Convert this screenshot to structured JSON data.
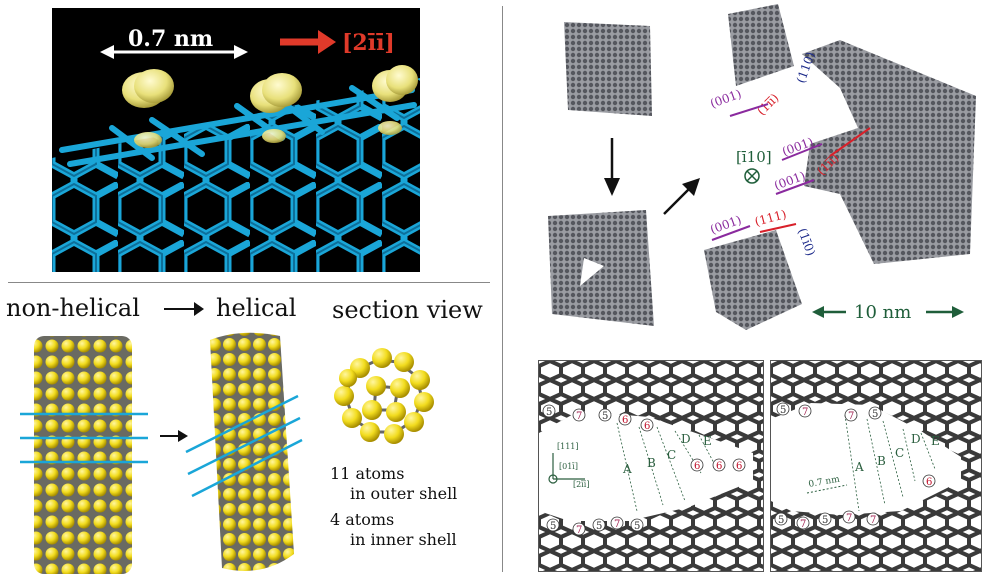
{
  "panel_a": {
    "distance_label": "0.7 nm",
    "direction_label": "[2īī]",
    "colors": {
      "lattice": "#1aa6d8",
      "orbital": "#e8e07a",
      "arrow": "#e03a2a",
      "background": "#000000"
    }
  },
  "panel_b": {
    "non_helical_label": "non-helical",
    "helical_label": "helical",
    "section_label": "section view",
    "outer_atoms": "11 atoms",
    "outer_shell": "in outer shell",
    "inner_atoms": "4 atoms",
    "inner_shell": "in inner shell",
    "colors": {
      "atom": "#f2dc1e",
      "bond": "#555555",
      "line": "#1aa6d8"
    }
  },
  "panel_c": {
    "axis_label": "[ī10]",
    "scale_label": "10 nm",
    "directions": [
      "(001)",
      "(1īī)",
      "(110)",
      "(001)",
      "(1īī)",
      "(001)",
      "(111)",
      "(1ī0)",
      "(001)"
    ],
    "colors": {
      "purple": "#8a2a9e",
      "red": "#d8202a",
      "blue": "#1c2a8a",
      "green": "#1f5e3a",
      "atom": "#6e7078"
    }
  },
  "panel_d": {
    "axis_1": "[111]",
    "axis_2": "[01ī]",
    "axis_3": "[2īī]",
    "domains": [
      "A",
      "B",
      "C",
      "D",
      "E"
    ],
    "ring_labels_left": [
      "5",
      "7",
      "5",
      "6",
      "6",
      "6",
      "6",
      "6",
      "5",
      "7",
      "5",
      "7",
      "5"
    ],
    "ring_labels_right": [
      "5",
      "7",
      "7",
      "5",
      "6",
      "5",
      "7",
      "5",
      "7",
      "7"
    ],
    "scale_label": "0.7 nm"
  }
}
